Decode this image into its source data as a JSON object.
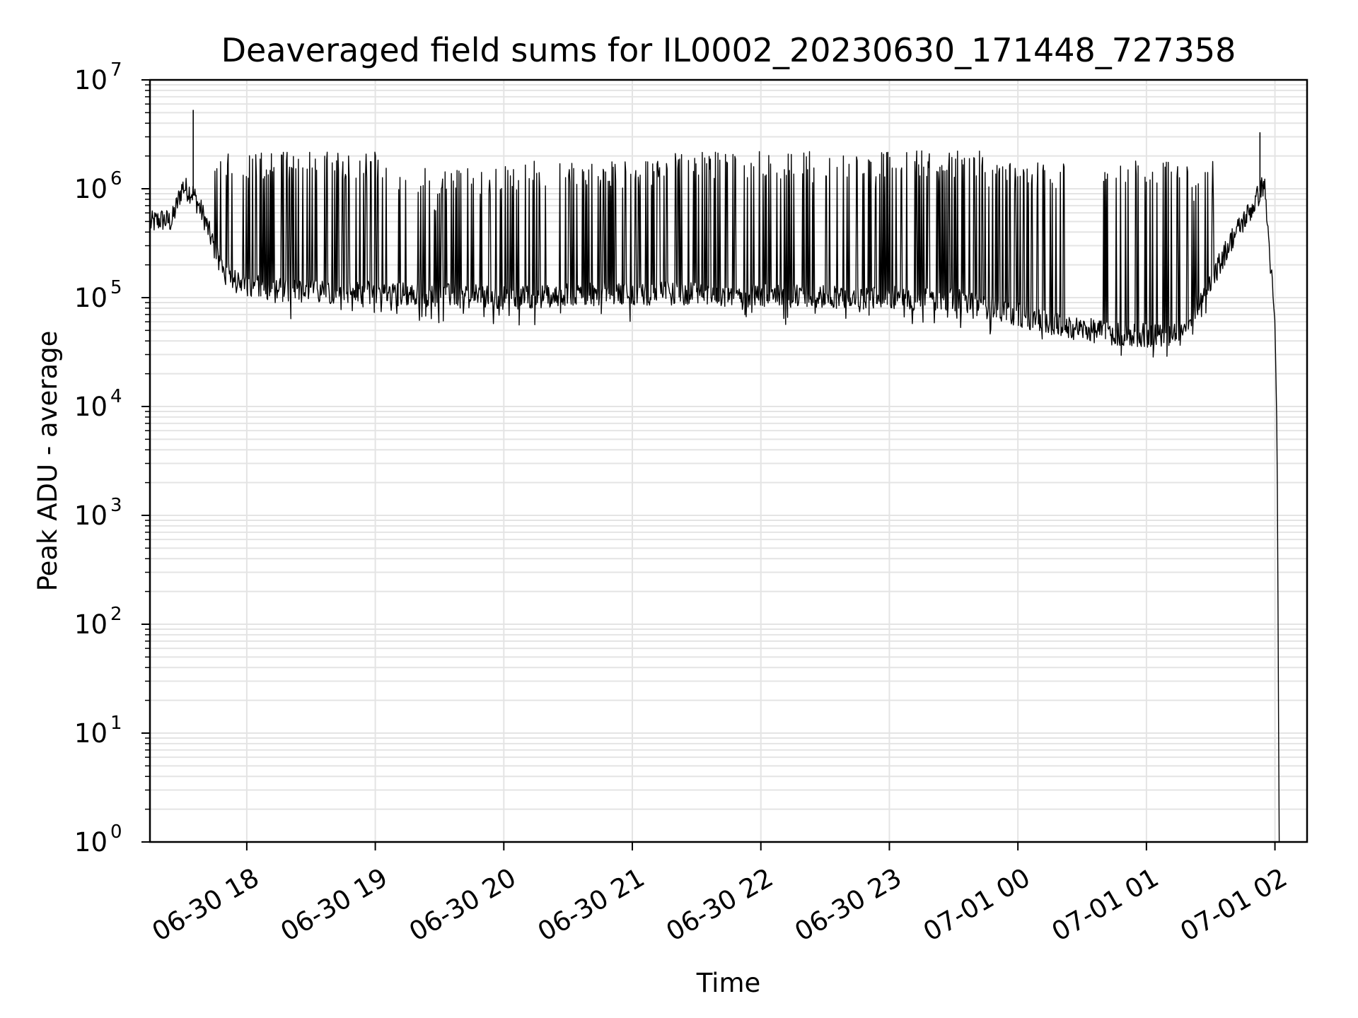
{
  "chart_data": {
    "type": "line",
    "title": "Deaveraged field sums for IL0002_20230630_171448_727358",
    "xlabel": "Time",
    "ylabel": "Peak ADU - average",
    "yscale": "log",
    "ylim": [
      1,
      10000000
    ],
    "xlim": [
      "2023-06-30 17:14:48",
      "2023-07-01 02:15:00"
    ],
    "grid": true,
    "x_ticks": [
      {
        "value": "2023-06-30 18:00",
        "label": "06-30 18"
      },
      {
        "value": "2023-06-30 19:00",
        "label": "06-30 19"
      },
      {
        "value": "2023-06-30 20:00",
        "label": "06-30 20"
      },
      {
        "value": "2023-06-30 21:00",
        "label": "06-30 21"
      },
      {
        "value": "2023-06-30 22:00",
        "label": "06-30 22"
      },
      {
        "value": "2023-06-30 23:00",
        "label": "06-30 23"
      },
      {
        "value": "2023-07-01 00:00",
        "label": "07-01 00"
      },
      {
        "value": "2023-07-01 01:00",
        "label": "07-01 01"
      },
      {
        "value": "2023-07-01 02:00",
        "label": "07-01 02"
      }
    ],
    "y_ticks": [
      {
        "value": 1,
        "base": "10",
        "exp": "0"
      },
      {
        "value": 10,
        "base": "10",
        "exp": "1"
      },
      {
        "value": 100,
        "base": "10",
        "exp": "2"
      },
      {
        "value": 1000,
        "base": "10",
        "exp": "3"
      },
      {
        "value": 10000,
        "base": "10",
        "exp": "4"
      },
      {
        "value": 100000,
        "base": "10",
        "exp": "5"
      },
      {
        "value": 1000000,
        "base": "10",
        "exp": "6"
      },
      {
        "value": 10000000,
        "base": "10",
        "exp": "7"
      }
    ],
    "series": [
      {
        "color": "#000000",
        "x": [
          "2023-06-30 17:15",
          "2023-06-30 17:20",
          "2023-06-30 17:25",
          "2023-06-30 17:30",
          "2023-06-30 17:35",
          "2023-06-30 17:40",
          "2023-06-30 17:45",
          "2023-06-30 17:50",
          "2023-06-30 17:55",
          "2023-06-30 18:00",
          "2023-06-30 18:10",
          "2023-06-30 18:30",
          "2023-06-30 19:00",
          "2023-06-30 19:30",
          "2023-06-30 20:00",
          "2023-06-30 20:30",
          "2023-06-30 21:00",
          "2023-06-30 21:30",
          "2023-06-30 22:00",
          "2023-06-30 22:30",
          "2023-06-30 23:00",
          "2023-06-30 23:30",
          "2023-07-01 00:00",
          "2023-07-01 00:20",
          "2023-07-01 00:40",
          "2023-07-01 01:00",
          "2023-07-01 01:10",
          "2023-07-01 01:20",
          "2023-07-01 01:30",
          "2023-07-01 01:40",
          "2023-07-01 01:50",
          "2023-07-01 01:55",
          "2023-07-01 02:00",
          "2023-07-01 02:01",
          "2023-07-01 02:02"
        ],
        "values": [
          480000,
          520000,
          500000,
          1050000,
          900000,
          550000,
          280000,
          170000,
          140000,
          130000,
          120000,
          115000,
          110000,
          105000,
          100000,
          105000,
          110000,
          108000,
          105000,
          103000,
          100000,
          95000,
          70000,
          55000,
          48000,
          45000,
          45000,
          60000,
          140000,
          350000,
          700000,
          1150000,
          60000,
          5000,
          1
        ]
      }
    ],
    "spikes": [
      {
        "x": "2023-06-30 17:35",
        "y": 5300000
      },
      {
        "x": "2023-07-01 01:53",
        "y": 3300000
      }
    ],
    "spike_bands": [
      {
        "start": "2023-06-30 17:45",
        "end": "2023-06-30 19:05",
        "top": 2200000
      },
      {
        "start": "2023-06-30 19:05",
        "end": "2023-06-30 20:10",
        "top": 1600000
      },
      {
        "start": "2023-06-30 20:10",
        "end": "2023-06-30 21:20",
        "top": 1800000
      },
      {
        "start": "2023-06-30 21:20",
        "end": "2023-06-30 22:20",
        "top": 2200000
      },
      {
        "start": "2023-06-30 22:20",
        "end": "2023-06-30 23:50",
        "top": 2250000
      },
      {
        "start": "2023-06-30 23:50",
        "end": "2023-07-01 00:25",
        "top": 1800000
      },
      {
        "start": "2023-07-01 00:40",
        "end": "2023-07-01 01:35",
        "top": 1800000
      }
    ]
  }
}
